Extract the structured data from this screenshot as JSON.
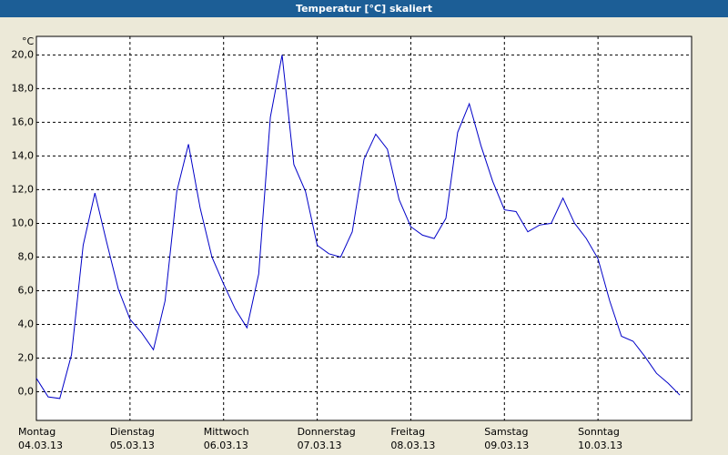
{
  "chart_data": {
    "type": "line",
    "title": "Temperatur [°C] skaliert",
    "y_label": "°C",
    "days": [
      {
        "name": "Montag",
        "date": "04.03.13"
      },
      {
        "name": "Dienstag",
        "date": "05.03.13"
      },
      {
        "name": "Mittwoch",
        "date": "06.03.13"
      },
      {
        "name": "Donnerstag",
        "date": "07.03.13"
      },
      {
        "name": "Freitag",
        "date": "08.03.13"
      },
      {
        "name": "Samstag",
        "date": "09.03.13"
      },
      {
        "name": "Sonntag",
        "date": "10.03.13"
      }
    ],
    "series": [
      {
        "name": "Temperatur",
        "color": "#0000c8",
        "values": [
          0.8,
          -0.3,
          -0.4,
          2.2,
          8.7,
          11.8,
          8.9,
          6.1,
          4.3,
          3.5,
          2.5,
          5.4,
          11.9,
          14.7,
          10.9,
          8.0,
          6.4,
          4.9,
          3.8,
          7.0,
          16.3,
          20.0,
          13.5,
          11.9,
          8.7,
          8.2,
          8.0,
          9.5,
          13.8,
          15.3,
          14.4,
          11.4,
          9.8,
          9.3,
          9.1,
          10.3,
          15.4,
          17.1,
          14.6,
          12.5,
          10.8,
          10.7,
          9.5,
          9.9,
          10.0,
          11.5,
          10.0,
          9.1,
          7.9,
          5.4,
          3.3,
          3.0,
          2.1,
          1.1,
          0.5,
          -0.2
        ]
      }
    ],
    "ylim": [
      -1.7,
      21.1
    ],
    "yticks": [
      {
        "value": 0,
        "label": "0,0"
      },
      {
        "value": 2,
        "label": "2,0"
      },
      {
        "value": 4,
        "label": "4,0"
      },
      {
        "value": 6,
        "label": "6,0"
      },
      {
        "value": 8,
        "label": "8,0"
      },
      {
        "value": 10,
        "label": "10,0"
      },
      {
        "value": 12,
        "label": "12,0"
      },
      {
        "value": 14,
        "label": "14,0"
      },
      {
        "value": 16,
        "label": "16,0"
      },
      {
        "value": 18,
        "label": "18,0"
      },
      {
        "value": 20,
        "label": "20,0"
      }
    ],
    "grid": true
  }
}
